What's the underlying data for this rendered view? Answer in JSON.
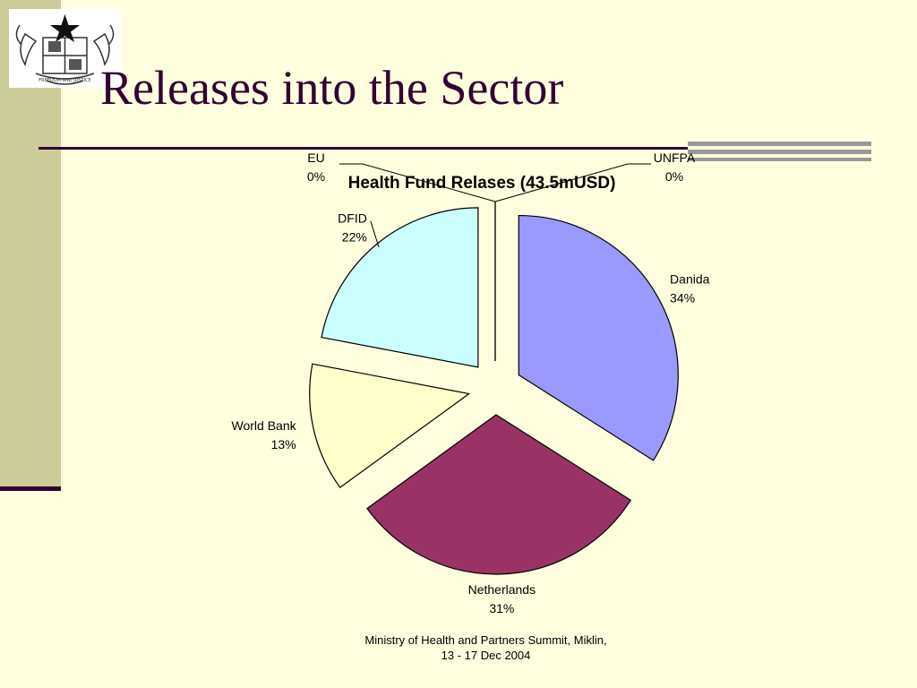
{
  "slide": {
    "title": "Releases into the Sector",
    "footer_line1": "Ministry of Health and Partners Summit, Miklin,",
    "footer_line2": "13 - 17 Dec 2004",
    "logo": "ghana-coat-of-arms-icon",
    "logo_motto": "FREEDOM AND JUSTICE"
  },
  "colors": {
    "background": "#FFFFE0",
    "title": "#330033",
    "side_band": "#CCCC99"
  },
  "chart_data": {
    "type": "pie",
    "title": "Health Fund Relases (43.5mUSD)",
    "legend": "none",
    "slices": [
      {
        "label": "UNFPA",
        "pct_label": "0%",
        "value": 0,
        "color": "#FFFFFF"
      },
      {
        "label": "Danida",
        "pct_label": "34%",
        "value": 34,
        "color": "#9999FF"
      },
      {
        "label": "Netherlands",
        "pct_label": "31%",
        "value": 31,
        "color": "#993366"
      },
      {
        "label": "World Bank",
        "pct_label": "13%",
        "value": 13,
        "color": "#FFFFCC"
      },
      {
        "label": "DFID",
        "pct_label": "22%",
        "value": 22,
        "color": "#CCFFFF"
      },
      {
        "label": "EU",
        "pct_label": "0%",
        "value": 0,
        "color": "#FFFFFF"
      }
    ]
  }
}
